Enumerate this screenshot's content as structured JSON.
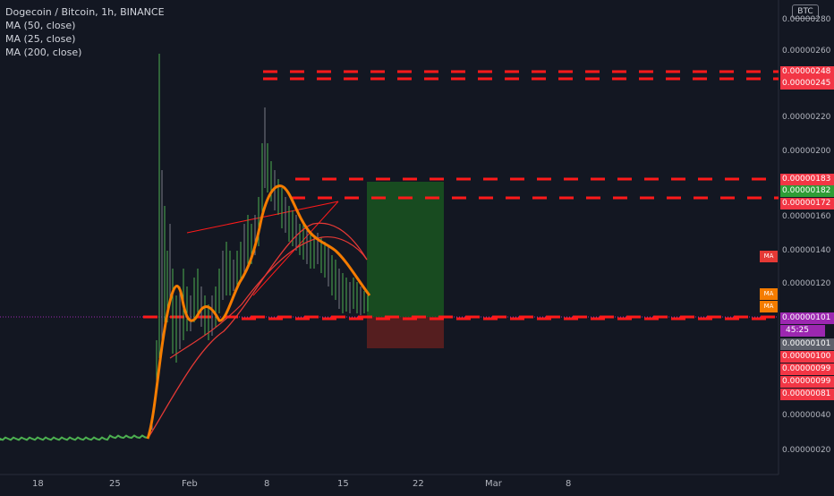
{
  "legend": {
    "title": "Dogecoin / Bitcoin, 1h, BINANCE",
    "indicators": [
      "MA (50, close)",
      "MA (25, close)",
      "MA (200, close)"
    ]
  },
  "currency": "BTC",
  "colors": {
    "background": "#131722",
    "grid": "#2a2e39",
    "candle_up": "#4caf50",
    "candle_down": "#787b86",
    "ma25": "#f57c00",
    "ma50": "#e53935",
    "level": "#ff1a1a",
    "long_profit": "#1b5e20",
    "long_loss": "#5d1f1f",
    "current_price": "#9c27b0"
  },
  "price_axis": {
    "ticks": [
      "0.00000280",
      "0.00000260",
      "0.00000220",
      "0.00000200",
      "0.00000160",
      "0.00000140",
      "0.00000120",
      "0.00000040",
      "0.00000020"
    ]
  },
  "time_axis": {
    "ticks": [
      "18",
      "25",
      "Feb",
      "8",
      "15",
      "22",
      "Mar",
      "8"
    ]
  },
  "price_tags": [
    {
      "label": "0.00000248",
      "color": "#f23645"
    },
    {
      "label": "0.00000245",
      "color": "#f23645"
    },
    {
      "label": "0.00000183",
      "color": "#f23645"
    },
    {
      "label": "0.00000182",
      "color": "#2e9d36"
    },
    {
      "label": "0.00000172",
      "color": "#f23645"
    },
    {
      "label": "0.00000101",
      "color": "#9c27b0"
    },
    {
      "label": "0.00000101",
      "color": "#5d606b"
    },
    {
      "label": "0.00000100",
      "color": "#f23645"
    },
    {
      "label": "0.00000099",
      "color": "#f23645"
    },
    {
      "label": "0.00000099",
      "color": "#f23645"
    },
    {
      "label": "0.00000081",
      "color": "#f23645"
    }
  ],
  "countdown": "45:25",
  "ma_tags": [
    "MA",
    "MA",
    "MA"
  ]
}
